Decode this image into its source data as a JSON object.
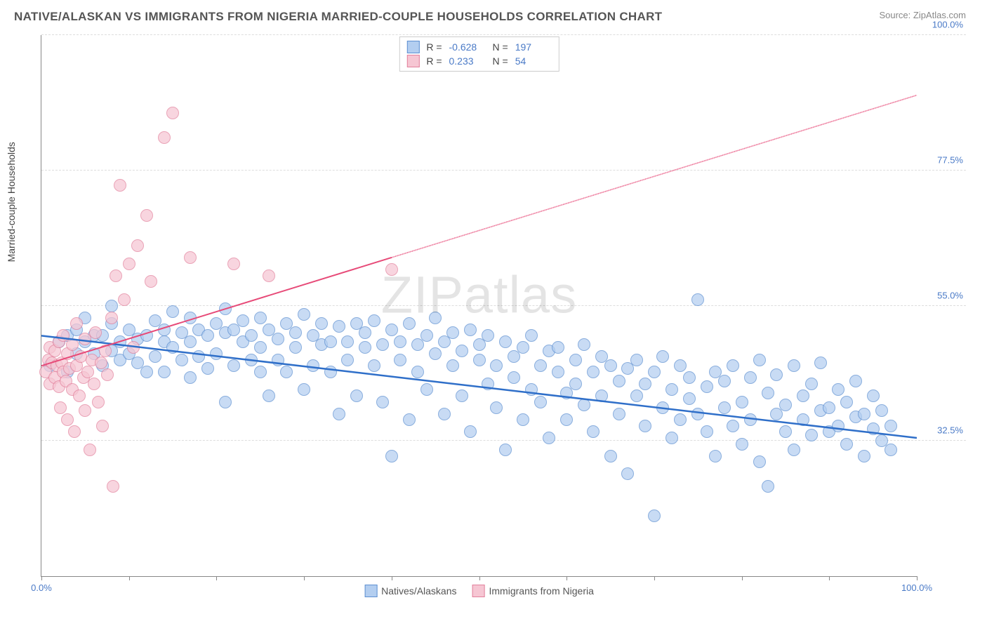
{
  "header": {
    "title": "NATIVE/ALASKAN VS IMMIGRANTS FROM NIGERIA MARRIED-COUPLE HOUSEHOLDS CORRELATION CHART",
    "source": "Source: ZipAtlas.com"
  },
  "watermark": "ZIPatlas",
  "chart": {
    "type": "scatter",
    "ylabel": "Married-couple Households",
    "xlim": [
      0,
      100
    ],
    "ylim": [
      10,
      100
    ],
    "background_color": "#ffffff",
    "grid_color": "#dddddd",
    "axis_color": "#888888",
    "xticks": [
      0,
      10,
      20,
      30,
      40,
      50,
      60,
      70,
      80,
      90,
      100
    ],
    "xtick_labels_shown": {
      "0": "0.0%",
      "100": "100.0%"
    },
    "yticks": [
      32.5,
      55.0,
      77.5,
      100.0
    ],
    "ytick_labels": [
      "32.5%",
      "55.0%",
      "77.5%",
      "100.0%"
    ],
    "ytick_color": "#4a7ac7",
    "xtick_color": "#4a7ac7",
    "series": [
      {
        "name": "Natives/Alaskans",
        "marker_fill": "#b3cef0",
        "marker_stroke": "#5d8fd1",
        "marker_opacity": 0.72,
        "marker_radius": 9,
        "trend_color": "#2f6fc9",
        "trend_width": 2.5,
        "trend": {
          "x1": 0,
          "y1": 50,
          "x2": 100,
          "y2": 33
        },
        "trend_dash_after_x": null,
        "R": "-0.628",
        "N": "197",
        "points": [
          [
            1,
            45
          ],
          [
            2,
            49
          ],
          [
            3,
            50
          ],
          [
            3,
            44
          ],
          [
            4,
            51
          ],
          [
            4,
            47
          ],
          [
            5,
            49
          ],
          [
            5,
            53
          ],
          [
            6,
            50
          ],
          [
            6,
            47
          ],
          [
            7,
            50
          ],
          [
            7,
            45
          ],
          [
            8,
            52
          ],
          [
            8,
            47.5
          ],
          [
            8,
            55
          ],
          [
            9,
            49
          ],
          [
            9,
            46
          ],
          [
            10,
            51
          ],
          [
            10,
            47
          ],
          [
            11,
            49.5
          ],
          [
            11,
            45.5
          ],
          [
            12,
            50
          ],
          [
            12,
            44
          ],
          [
            13,
            52.5
          ],
          [
            13,
            46.5
          ],
          [
            14,
            49
          ],
          [
            14,
            51
          ],
          [
            14,
            44
          ],
          [
            15,
            54
          ],
          [
            15,
            48
          ],
          [
            16,
            50.5
          ],
          [
            16,
            46
          ],
          [
            17,
            49
          ],
          [
            17,
            53
          ],
          [
            17,
            43
          ],
          [
            18,
            51
          ],
          [
            18,
            46.5
          ],
          [
            19,
            50
          ],
          [
            19,
            44.5
          ],
          [
            20,
            52
          ],
          [
            20,
            47
          ],
          [
            21,
            50.5
          ],
          [
            21,
            54.5
          ],
          [
            21,
            39
          ],
          [
            22,
            51
          ],
          [
            22,
            45
          ],
          [
            23,
            49
          ],
          [
            23,
            52.5
          ],
          [
            24,
            46
          ],
          [
            24,
            50
          ],
          [
            25,
            53
          ],
          [
            25,
            44
          ],
          [
            25,
            48
          ],
          [
            26,
            51
          ],
          [
            26,
            40
          ],
          [
            27,
            49.5
          ],
          [
            27,
            46
          ],
          [
            28,
            52
          ],
          [
            28,
            44
          ],
          [
            29,
            48
          ],
          [
            29,
            50.5
          ],
          [
            30,
            53.5
          ],
          [
            30,
            41
          ],
          [
            31,
            50
          ],
          [
            31,
            45
          ],
          [
            32,
            48.5
          ],
          [
            32,
            52
          ],
          [
            33,
            44
          ],
          [
            33,
            49
          ],
          [
            34,
            51.5
          ],
          [
            34,
            37
          ],
          [
            35,
            49
          ],
          [
            35,
            46
          ],
          [
            36,
            52
          ],
          [
            36,
            40
          ],
          [
            37,
            48
          ],
          [
            37,
            50.5
          ],
          [
            38,
            45
          ],
          [
            38,
            52.5
          ],
          [
            39,
            39
          ],
          [
            39,
            48.5
          ],
          [
            40,
            51
          ],
          [
            40,
            30
          ],
          [
            41,
            46
          ],
          [
            41,
            49
          ],
          [
            42,
            52
          ],
          [
            42,
            36
          ],
          [
            43,
            48.5
          ],
          [
            43,
            44
          ],
          [
            44,
            50
          ],
          [
            44,
            41
          ],
          [
            45,
            47
          ],
          [
            45,
            53
          ],
          [
            46,
            37
          ],
          [
            46,
            49
          ],
          [
            47,
            45
          ],
          [
            47,
            50.5
          ],
          [
            48,
            40
          ],
          [
            48,
            47.5
          ],
          [
            49,
            51
          ],
          [
            49,
            34
          ],
          [
            50,
            46
          ],
          [
            50,
            48.5
          ],
          [
            51,
            42
          ],
          [
            51,
            50
          ],
          [
            52,
            38
          ],
          [
            52,
            45
          ],
          [
            53,
            49
          ],
          [
            53,
            31
          ],
          [
            54,
            46.5
          ],
          [
            54,
            43
          ],
          [
            55,
            48
          ],
          [
            55,
            36
          ],
          [
            56,
            50
          ],
          [
            56,
            41
          ],
          [
            57,
            45
          ],
          [
            57,
            39
          ],
          [
            58,
            47.5
          ],
          [
            58,
            33
          ],
          [
            59,
            44
          ],
          [
            59,
            48
          ],
          [
            60,
            40.5
          ],
          [
            60,
            36
          ],
          [
            61,
            46
          ],
          [
            61,
            42
          ],
          [
            62,
            38.5
          ],
          [
            62,
            48.5
          ],
          [
            63,
            34
          ],
          [
            63,
            44
          ],
          [
            64,
            46.5
          ],
          [
            64,
            40
          ],
          [
            65,
            30
          ],
          [
            65,
            45
          ],
          [
            66,
            42.5
          ],
          [
            66,
            37
          ],
          [
            67,
            27
          ],
          [
            67,
            44.5
          ],
          [
            68,
            40
          ],
          [
            68,
            46
          ],
          [
            69,
            35
          ],
          [
            69,
            42
          ],
          [
            70,
            20
          ],
          [
            70,
            44
          ],
          [
            71,
            38
          ],
          [
            71,
            46.5
          ],
          [
            72,
            33
          ],
          [
            72,
            41
          ],
          [
            73,
            45
          ],
          [
            73,
            36
          ],
          [
            74,
            39.5
          ],
          [
            74,
            43
          ],
          [
            75,
            56
          ],
          [
            75,
            37
          ],
          [
            76,
            41.5
          ],
          [
            76,
            34
          ],
          [
            77,
            44
          ],
          [
            77,
            30
          ],
          [
            78,
            38
          ],
          [
            78,
            42.5
          ],
          [
            79,
            35
          ],
          [
            79,
            45
          ],
          [
            80,
            32
          ],
          [
            80,
            39
          ],
          [
            81,
            43
          ],
          [
            81,
            36
          ],
          [
            82,
            46
          ],
          [
            82,
            29
          ],
          [
            83,
            25
          ],
          [
            83,
            40.5
          ],
          [
            84,
            37
          ],
          [
            84,
            43.5
          ],
          [
            85,
            34
          ],
          [
            85,
            38.5
          ],
          [
            86,
            45
          ],
          [
            86,
            31
          ],
          [
            87,
            36
          ],
          [
            87,
            40
          ],
          [
            88,
            33.5
          ],
          [
            88,
            42
          ],
          [
            89,
            37.5
          ],
          [
            89,
            45.5
          ],
          [
            90,
            34
          ],
          [
            90,
            38
          ],
          [
            91,
            41
          ],
          [
            91,
            35
          ],
          [
            92,
            32
          ],
          [
            92,
            39
          ],
          [
            93,
            36.5
          ],
          [
            93,
            42.5
          ],
          [
            94,
            30
          ],
          [
            94,
            37
          ],
          [
            95,
            34.5
          ],
          [
            95,
            40
          ],
          [
            96,
            32.5
          ],
          [
            96,
            37.5
          ],
          [
            97,
            35
          ],
          [
            97,
            31
          ]
        ]
      },
      {
        "name": "Immigrants from Nigeria",
        "marker_fill": "#f6c6d3",
        "marker_stroke": "#e2809c",
        "marker_opacity": 0.72,
        "marker_radius": 9,
        "trend_color": "#e74a78",
        "trend_width": 2,
        "trend": {
          "x1": 0,
          "y1": 45,
          "x2": 100,
          "y2": 90
        },
        "trend_dash_after_x": 40,
        "R": "0.233",
        "N": "54",
        "points": [
          [
            0.5,
            44
          ],
          [
            0.8,
            46
          ],
          [
            1,
            42
          ],
          [
            1,
            48
          ],
          [
            1.2,
            45.5
          ],
          [
            1.5,
            43
          ],
          [
            1.5,
            47.5
          ],
          [
            1.8,
            45
          ],
          [
            2,
            41.5
          ],
          [
            2,
            49
          ],
          [
            2.2,
            38
          ],
          [
            2.3,
            45.5
          ],
          [
            2.5,
            44
          ],
          [
            2.5,
            50
          ],
          [
            2.8,
            42.5
          ],
          [
            3,
            47
          ],
          [
            3,
            36
          ],
          [
            3.2,
            44.5
          ],
          [
            3.5,
            41
          ],
          [
            3.5,
            48.5
          ],
          [
            3.8,
            34
          ],
          [
            4,
            45
          ],
          [
            4,
            52
          ],
          [
            4.3,
            40
          ],
          [
            4.5,
            46.5
          ],
          [
            4.8,
            43
          ],
          [
            5,
            37.5
          ],
          [
            5,
            49.5
          ],
          [
            5.3,
            44
          ],
          [
            5.5,
            31
          ],
          [
            5.8,
            46
          ],
          [
            6,
            42
          ],
          [
            6.2,
            50.5
          ],
          [
            6.5,
            39
          ],
          [
            6.8,
            45.5
          ],
          [
            7,
            35
          ],
          [
            7.3,
            47.5
          ],
          [
            7.5,
            43.5
          ],
          [
            8,
            53
          ],
          [
            8.2,
            25
          ],
          [
            8.5,
            60
          ],
          [
            9,
            75
          ],
          [
            9.5,
            56
          ],
          [
            10,
            62
          ],
          [
            10.5,
            48
          ],
          [
            11,
            65
          ],
          [
            12,
            70
          ],
          [
            12.5,
            59
          ],
          [
            14,
            83
          ],
          [
            15,
            87
          ],
          [
            17,
            63
          ],
          [
            22,
            62
          ],
          [
            26,
            60
          ],
          [
            40,
            61
          ]
        ]
      }
    ],
    "stat_box": {
      "r_label": "R =",
      "n_label": "N =",
      "value_color": "#4a7ac7"
    },
    "legend": {
      "items": [
        {
          "label": "Natives/Alaskans",
          "fill": "#b3cef0",
          "stroke": "#5d8fd1"
        },
        {
          "label": "Immigrants from Nigeria",
          "fill": "#f6c6d3",
          "stroke": "#e2809c"
        }
      ]
    }
  }
}
